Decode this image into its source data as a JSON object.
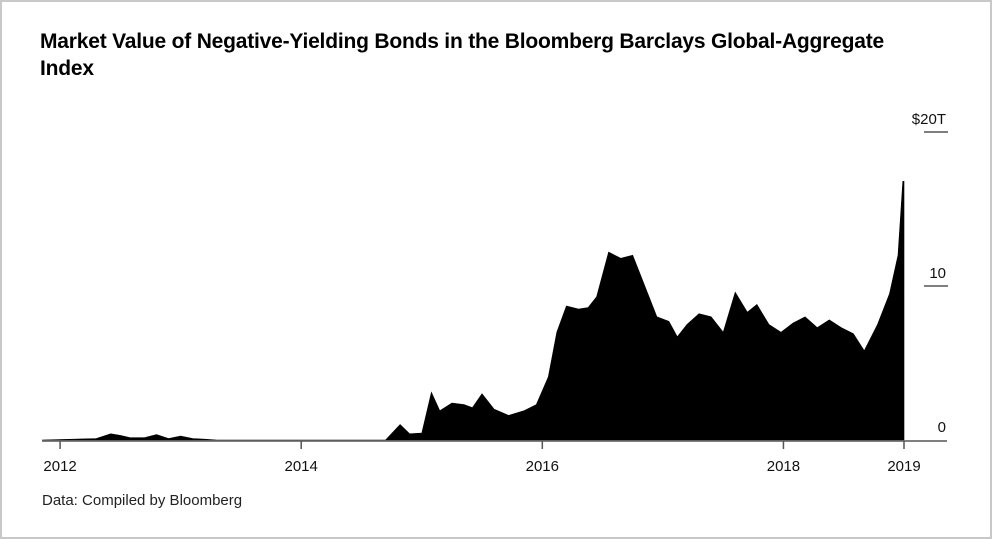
{
  "chart_data": {
    "type": "area",
    "title": "Market Value of Negative-Yielding Bonds in the Bloomberg Barclays Global-Aggregate Index",
    "source": "Data: Compiled by Bloomberg",
    "xlabel": "",
    "ylabel": "",
    "xlim": [
      2011.85,
      2019.0
    ],
    "ylim": [
      0,
      20
    ],
    "x_ticks": [
      {
        "value": 2012,
        "label": "2012"
      },
      {
        "value": 2014,
        "label": "2014"
      },
      {
        "value": 2016,
        "label": "2016"
      },
      {
        "value": 2018,
        "label": "2018"
      },
      {
        "value": 2019,
        "label": "2019"
      }
    ],
    "y_ticks": [
      {
        "value": 20,
        "label": "$20T"
      },
      {
        "value": 10,
        "label": "10"
      },
      {
        "value": 0,
        "label": "0"
      }
    ],
    "color": "#000000",
    "series": [
      {
        "x": [
          2011.85,
          2012.3,
          2012.42,
          2012.5,
          2012.58,
          2012.7,
          2012.8,
          2012.9,
          2013.0,
          2013.1,
          2013.2,
          2013.3,
          2013.4,
          2013.5,
          2014.0,
          2014.5,
          2014.7,
          2014.82,
          2014.9,
          2015.0,
          2015.08,
          2015.15,
          2015.25,
          2015.35,
          2015.42,
          2015.5,
          2015.6,
          2015.72,
          2015.85,
          2015.95,
          2016.05,
          2016.12,
          2016.2,
          2016.3,
          2016.38,
          2016.45,
          2016.55,
          2016.65,
          2016.75,
          2016.85,
          2016.95,
          2017.05,
          2017.12,
          2017.2,
          2017.3,
          2017.4,
          2017.5,
          2017.6,
          2017.7,
          2017.78,
          2017.88,
          2017.98,
          2018.08,
          2018.18,
          2018.28,
          2018.38,
          2018.48,
          2018.58,
          2018.67,
          2018.78,
          2018.88,
          2018.95,
          2018.99,
          2019.0
        ],
        "y": [
          0.0,
          0.1,
          0.4,
          0.3,
          0.15,
          0.15,
          0.35,
          0.1,
          0.25,
          0.1,
          0.05,
          0.0,
          0.0,
          0.0,
          0.0,
          0.0,
          0.0,
          1.0,
          0.4,
          0.45,
          3.1,
          1.9,
          2.4,
          2.3,
          2.1,
          3.0,
          2.0,
          1.6,
          1.9,
          2.3,
          4.1,
          7.0,
          8.7,
          8.5,
          8.6,
          9.3,
          12.2,
          11.8,
          12.0,
          10.0,
          8.0,
          7.7,
          6.7,
          7.5,
          8.2,
          8.0,
          7.0,
          9.6,
          8.3,
          8.8,
          7.5,
          7.0,
          7.6,
          8.0,
          7.3,
          7.8,
          7.3,
          6.9,
          5.8,
          7.5,
          9.5,
          12.0,
          16.8,
          16.8
        ]
      }
    ]
  }
}
